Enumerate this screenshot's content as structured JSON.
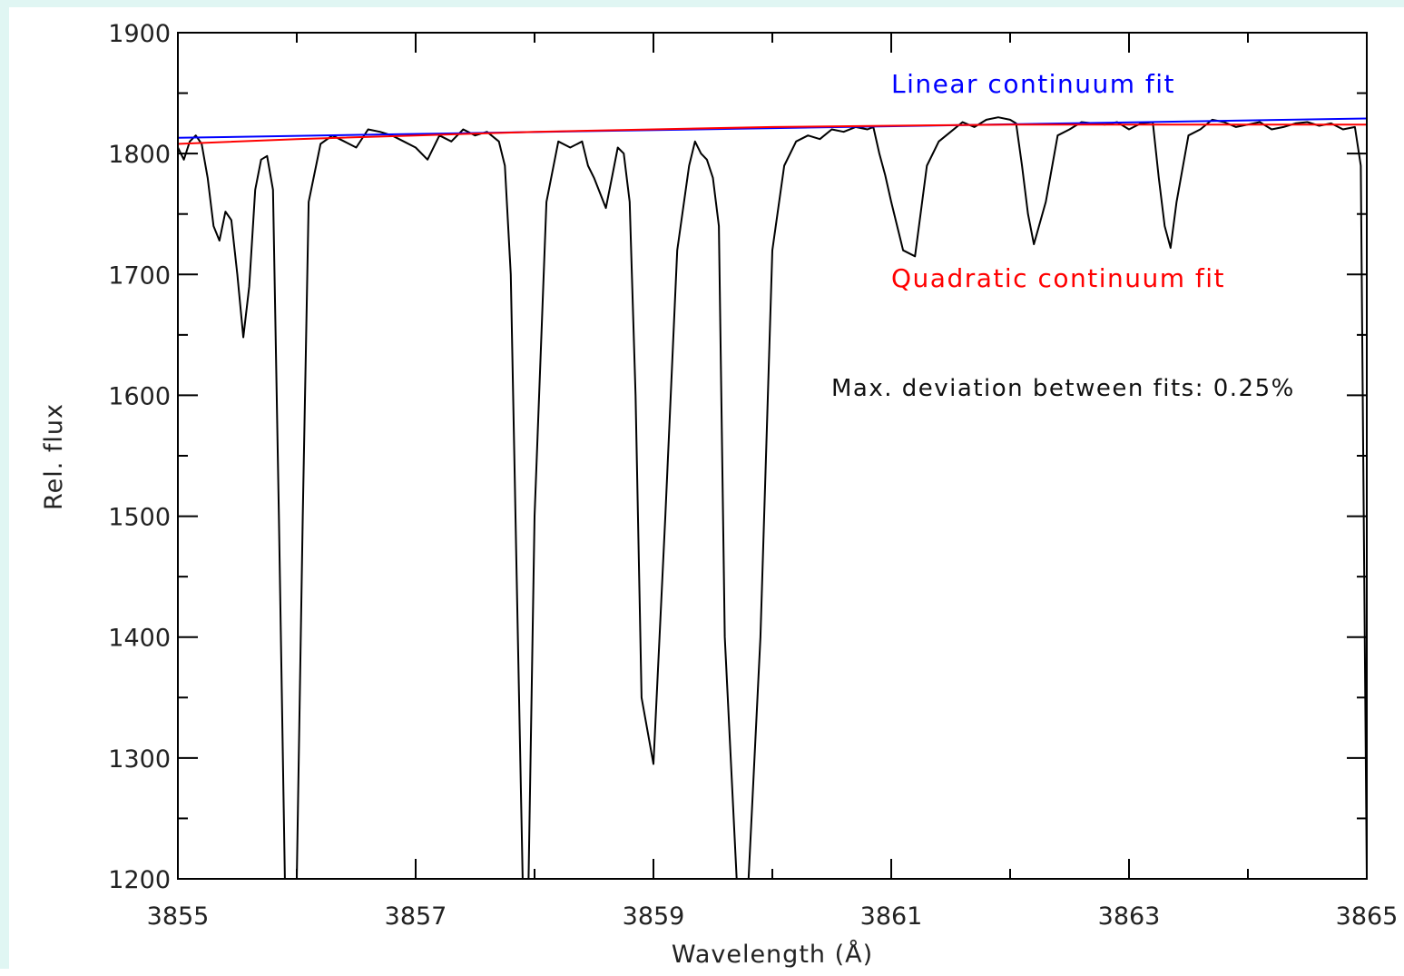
{
  "chart_data": {
    "type": "line",
    "title": "",
    "xlabel": "Wavelength (Å)",
    "ylabel": "Rel. flux",
    "xlim": [
      3855,
      3865
    ],
    "ylim": [
      1200,
      1900
    ],
    "x_ticks": [
      3855,
      3857,
      3859,
      3861,
      3863,
      3865
    ],
    "y_ticks": [
      1200,
      1300,
      1400,
      1500,
      1600,
      1700,
      1800,
      1900
    ],
    "annotations": {
      "linear_label": "Linear continuum fit",
      "quadratic_label": "Quadratic continuum fit",
      "deviation_text": "Max. deviation between fits: 0.25%"
    },
    "colors": {
      "spectrum": "#000000",
      "linear": "#0000ff",
      "quadratic": "#ff0000"
    },
    "series": [
      {
        "name": "Linear continuum fit",
        "x": [
          3855,
          3865
        ],
        "y": [
          1813,
          1829
        ]
      },
      {
        "name": "Quadratic continuum fit",
        "x": [
          3855,
          3856,
          3857,
          3858,
          3859,
          3860,
          3861,
          3862,
          3863,
          3864,
          3865
        ],
        "y": [
          1808,
          1812,
          1815,
          1818,
          1820,
          1822,
          1823,
          1824,
          1824,
          1824,
          1824
        ]
      },
      {
        "x": [
          3855.0,
          3855.05,
          3855.1,
          3855.15,
          3855.2,
          3855.25,
          3855.3,
          3855.35,
          3855.4,
          3855.45,
          3855.5,
          3855.55,
          3855.6,
          3855.65,
          3855.7,
          3855.75,
          3855.8,
          3855.85,
          3855.9,
          3855.95,
          3856.0,
          3856.05,
          3856.1,
          3856.2,
          3856.3,
          3856.4,
          3856.5,
          3856.6,
          3856.7,
          3856.8,
          3856.9,
          3857.0,
          3857.1,
          3857.2,
          3857.3,
          3857.4,
          3857.5,
          3857.6,
          3857.7,
          3857.75,
          3857.8,
          3857.85,
          3857.9,
          3857.95,
          3858.0,
          3858.1,
          3858.2,
          3858.3,
          3858.4,
          3858.45,
          3858.5,
          3858.6,
          3858.65,
          3858.7,
          3858.75,
          3858.8,
          3858.85,
          3858.9,
          3859.0,
          3859.1,
          3859.2,
          3859.3,
          3859.35,
          3859.4,
          3859.45,
          3859.5,
          3859.55,
          3859.6,
          3859.7,
          3859.8,
          3859.9,
          3860.0,
          3860.1,
          3860.2,
          3860.3,
          3860.4,
          3860.5,
          3860.6,
          3860.7,
          3860.8,
          3860.85,
          3860.9,
          3860.95,
          3861.0,
          3861.1,
          3861.2,
          3861.3,
          3861.4,
          3861.5,
          3861.6,
          3861.7,
          3861.8,
          3861.9,
          3862.0,
          3862.05,
          3862.1,
          3862.15,
          3862.2,
          3862.3,
          3862.4,
          3862.5,
          3862.6,
          3862.7,
          3862.8,
          3862.9,
          3863.0,
          3863.1,
          3863.2,
          3863.25,
          3863.3,
          3863.35,
          3863.4,
          3863.5,
          3863.6,
          3863.7,
          3863.8,
          3863.9,
          3864.0,
          3864.1,
          3864.2,
          3864.3,
          3864.4,
          3864.5,
          3864.6,
          3864.7,
          3864.8,
          3864.9,
          3864.95,
          3865.0
        ],
        "y": [
          1805,
          1795,
          1810,
          1815,
          1808,
          1780,
          1740,
          1728,
          1752,
          1745,
          1700,
          1648,
          1690,
          1770,
          1795,
          1798,
          1770,
          1500,
          1200,
          1200,
          1200,
          1500,
          1760,
          1808,
          1815,
          1810,
          1805,
          1820,
          1818,
          1815,
          1810,
          1805,
          1795,
          1815,
          1810,
          1820,
          1815,
          1818,
          1810,
          1790,
          1700,
          1450,
          1200,
          1200,
          1500,
          1760,
          1810,
          1805,
          1810,
          1790,
          1780,
          1755,
          1780,
          1805,
          1800,
          1760,
          1600,
          1350,
          1295,
          1500,
          1720,
          1790,
          1810,
          1800,
          1795,
          1780,
          1740,
          1400,
          1200,
          1200,
          1400,
          1720,
          1790,
          1810,
          1815,
          1812,
          1820,
          1818,
          1822,
          1820,
          1822,
          1800,
          1782,
          1760,
          1720,
          1715,
          1790,
          1810,
          1818,
          1826,
          1822,
          1828,
          1830,
          1828,
          1825,
          1790,
          1750,
          1725,
          1760,
          1815,
          1820,
          1826,
          1825,
          1824,
          1826,
          1820,
          1825,
          1826,
          1780,
          1740,
          1722,
          1760,
          1815,
          1820,
          1828,
          1826,
          1822,
          1824,
          1826,
          1820,
          1822,
          1825,
          1826,
          1823,
          1825,
          1820,
          1822,
          1790,
          1200
        ]
      }
    ]
  }
}
